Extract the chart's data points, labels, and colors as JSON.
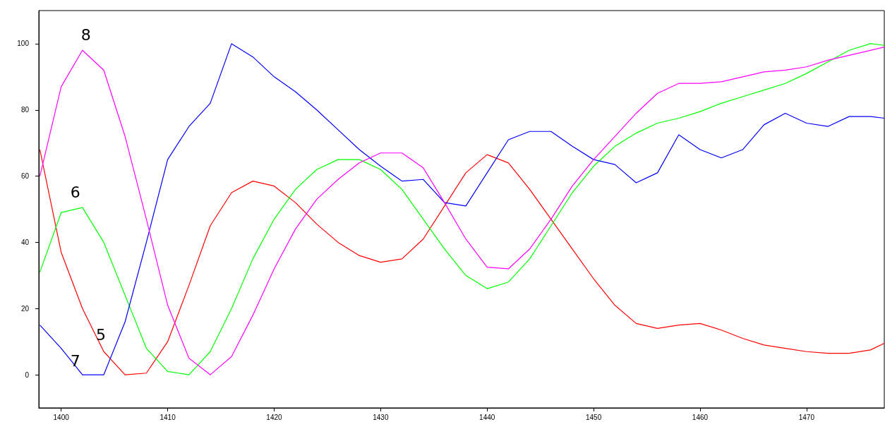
{
  "chart_data": {
    "type": "line",
    "x": [
      1398,
      1400,
      1402,
      1404,
      1406,
      1408,
      1410,
      1412,
      1414,
      1416,
      1418,
      1420,
      1422,
      1424,
      1426,
      1428,
      1430,
      1432,
      1434,
      1436,
      1438,
      1440,
      1442,
      1444,
      1446,
      1448,
      1450,
      1452,
      1454,
      1456,
      1458,
      1460,
      1462,
      1464,
      1466,
      1468,
      1470,
      1472,
      1474,
      1476,
      1477.3
    ],
    "series": [
      {
        "name": "5",
        "color": "#ff0000",
        "values": [
          68,
          37,
          20,
          7,
          0,
          0.5,
          10,
          27,
          45,
          55,
          58.5,
          57,
          52,
          45.5,
          40,
          36,
          34,
          35,
          41,
          51,
          61,
          66.5,
          64,
          56,
          47,
          38,
          29,
          21,
          15.5,
          14,
          15,
          15.5,
          13.5,
          11,
          9,
          8,
          7,
          6.5,
          6.5,
          7.5,
          9.5
        ]
      },
      {
        "name": "6",
        "color": "#00ff00",
        "values": [
          31,
          49,
          50.5,
          40,
          24,
          8,
          1,
          0,
          7,
          20,
          35,
          47,
          56,
          62,
          65,
          65,
          62,
          56,
          47,
          38,
          30,
          26,
          28,
          35,
          45,
          55,
          63,
          69,
          73,
          76,
          77.5,
          79.5,
          82,
          84,
          86,
          88,
          91,
          94.5,
          98,
          100,
          99.5
        ]
      },
      {
        "name": "7",
        "color": "#0000ff",
        "values": [
          15,
          8,
          0,
          0,
          16,
          40,
          65,
          75,
          82,
          100,
          96,
          90,
          85.5,
          80,
          74,
          68,
          63,
          58.5,
          59,
          52,
          51,
          61,
          71,
          73.5,
          73.5,
          69,
          65,
          63.5,
          58,
          61,
          72.5,
          68,
          65.5,
          68,
          75.5,
          79,
          76,
          75,
          78,
          78,
          77.5
        ]
      },
      {
        "name": "8",
        "color": "#ff00ff",
        "values": [
          60,
          87,
          98,
          92,
          72,
          47,
          21,
          5,
          0,
          5.5,
          18,
          32,
          44,
          53,
          59,
          64,
          67,
          67,
          62.5,
          52,
          41,
          32.5,
          32,
          38,
          47,
          57,
          65,
          72,
          79,
          85,
          88,
          88,
          88.5,
          90,
          91.5,
          92,
          93,
          95,
          96.5,
          98,
          99
        ]
      }
    ],
    "xlim": [
      1397.9,
      1477.3
    ],
    "xticks": [
      1400,
      1410,
      1420,
      1430,
      1440,
      1450,
      1460,
      1470
    ],
    "ylim": [
      -10,
      110
    ],
    "yticks": [
      0,
      20,
      40,
      60,
      80,
      100
    ],
    "grid": false,
    "legend": false,
    "marker": "none",
    "line_style": "solid"
  }
}
